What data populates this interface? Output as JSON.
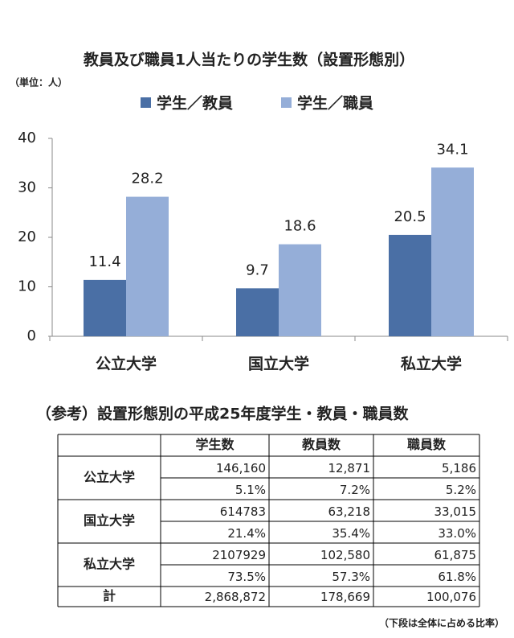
{
  "chart_data": {
    "type": "bar",
    "title": "教員及び職員1人当たりの学生数（設置形態別）",
    "unit_label": "（単位：人）",
    "categories": [
      "公立大学",
      "国立大学",
      "私立大学"
    ],
    "series": [
      {
        "name": "学生／教員",
        "color": "#4a6fa5",
        "values": [
          11.4,
          9.7,
          20.5
        ]
      },
      {
        "name": "学生／職員",
        "color": "#95aed8",
        "values": [
          28.2,
          18.6,
          34.1
        ]
      }
    ],
    "ylim": [
      0,
      40
    ],
    "yticks": [
      0,
      10,
      20,
      30,
      40
    ],
    "grid": false,
    "legend": "top"
  },
  "table": {
    "title": "（参考）設置形態別の平成25年度学生・教員・職員数",
    "columns": [
      "学生数",
      "教員数",
      "職員数"
    ],
    "groups": [
      {
        "label": "公立大学",
        "rows": [
          [
            "146,160",
            "12,871",
            "5,186"
          ],
          [
            "5.1%",
            "7.2%",
            "5.2%"
          ]
        ]
      },
      {
        "label": "国立大学",
        "rows": [
          [
            "614783",
            "63,218",
            "33,015"
          ],
          [
            "21.4%",
            "35.4%",
            "33.0%"
          ]
        ]
      },
      {
        "label": "私立大学",
        "rows": [
          [
            "2107929",
            "102,580",
            "61,875"
          ],
          [
            "73.5%",
            "57.3%",
            "61.8%"
          ]
        ]
      }
    ],
    "total": {
      "label": "計",
      "values": [
        "2,868,872",
        "178,669",
        "100,076"
      ]
    },
    "note": "（下段は全体に占める比率）"
  }
}
